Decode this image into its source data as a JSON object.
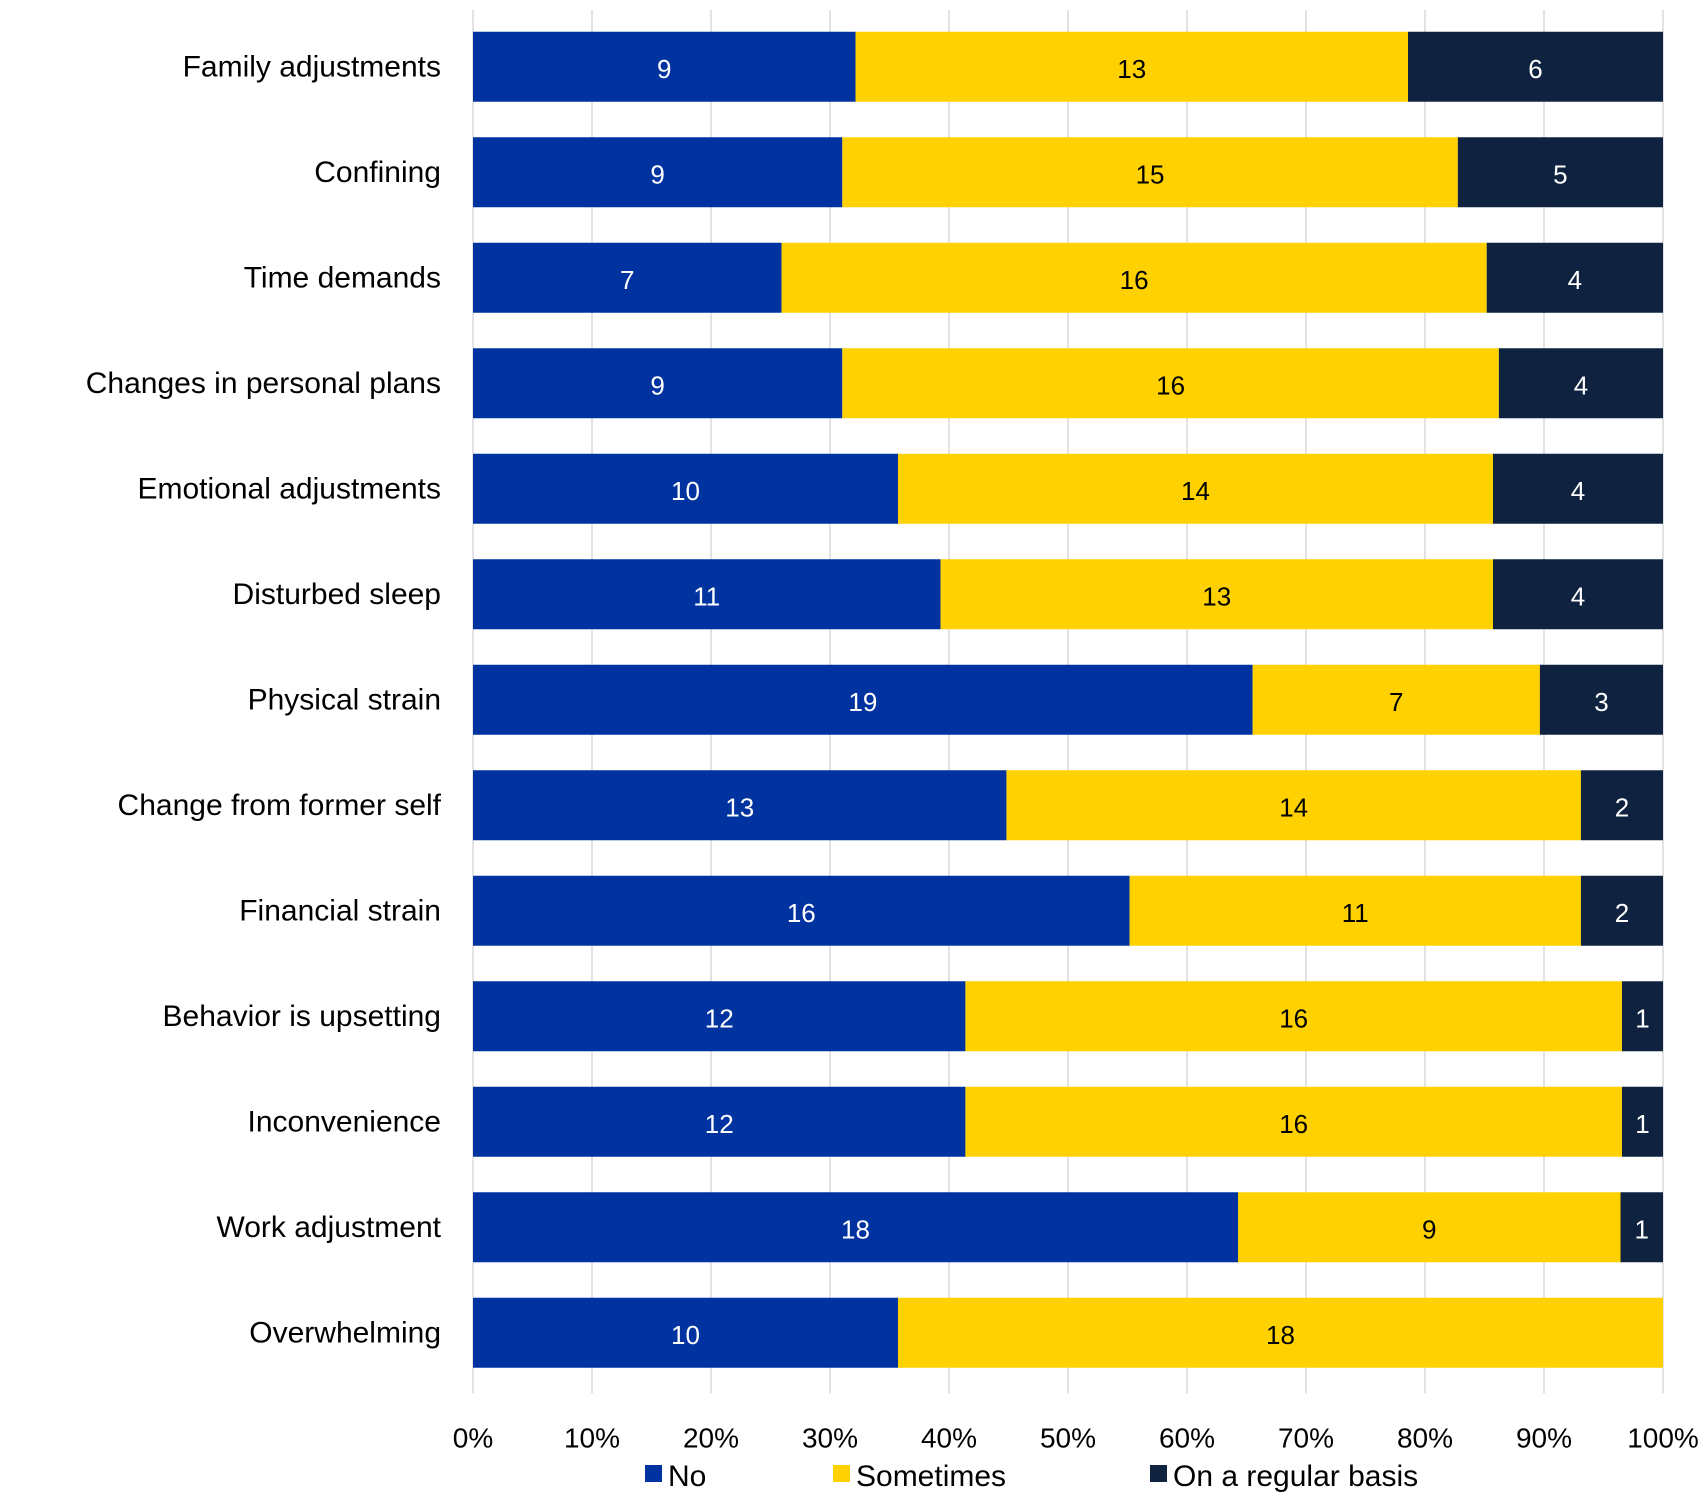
{
  "chart_data": {
    "type": "bar",
    "orientation": "horizontal",
    "stacking": "percent",
    "categories": [
      "Family adjustments",
      "Confining",
      "Time demands",
      "Changes in personal plans",
      "Emotional adjustments",
      "Disturbed sleep",
      "Physical strain",
      "Change from former self",
      "Financial strain",
      "Behavior is upsetting",
      "Inconvenience",
      "Work adjustment",
      "Overwhelming"
    ],
    "series": [
      {
        "name": "No",
        "color": "#0033a0",
        "label_color": "#ffffff",
        "values": [
          9,
          9,
          7,
          9,
          10,
          11,
          19,
          13,
          16,
          12,
          12,
          18,
          10
        ]
      },
      {
        "name": "Sometimes",
        "color": "#ffd100",
        "label_color": "#000000",
        "values": [
          13,
          15,
          16,
          16,
          14,
          13,
          7,
          14,
          11,
          16,
          16,
          9,
          18
        ]
      },
      {
        "name": "On a regular basis",
        "color": "#0f2341",
        "label_color": "#ffffff",
        "values": [
          6,
          5,
          4,
          4,
          4,
          4,
          3,
          2,
          2,
          1,
          1,
          1,
          0
        ]
      }
    ],
    "xticks": [
      "0%",
      "10%",
      "20%",
      "30%",
      "40%",
      "50%",
      "60%",
      "70%",
      "80%",
      "90%",
      "100%"
    ],
    "xlim": [
      0,
      100
    ],
    "grid": "vertical",
    "grid_color": "#d9d9d9",
    "legend": "bottom",
    "title": "",
    "xlabel": "",
    "ylabel": ""
  }
}
